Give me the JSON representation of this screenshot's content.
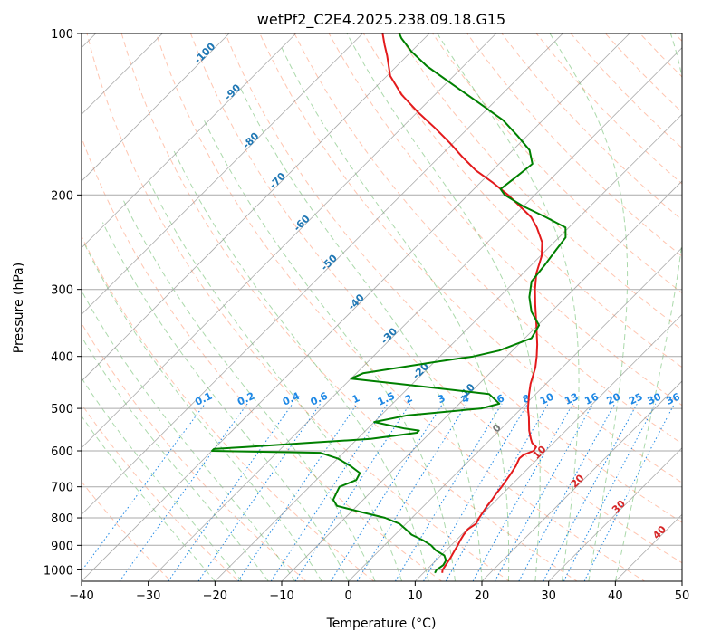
{
  "chart_data": {
    "type": "line",
    "subtype": "skew-T log-p diagram",
    "title": "wetPf2_C2E4.2025.238.09.18.G15",
    "xlabel": "Temperature (°C)",
    "ylabel": "Pressure (hPa)",
    "xlim": [
      -40,
      50
    ],
    "ylim": [
      1050,
      100
    ],
    "y_scale": "log",
    "grid": true,
    "x_ticks": [
      -40,
      -30,
      -20,
      -10,
      0,
      10,
      20,
      30,
      40,
      50
    ],
    "x_tick_labels": [
      "−40",
      "−30",
      "−20",
      "−10",
      "0",
      "10",
      "20",
      "30",
      "40",
      "50"
    ],
    "y_ticks": [
      100,
      200,
      300,
      400,
      500,
      600,
      700,
      800,
      900,
      1000
    ],
    "y_tick_labels": [
      "100",
      "200",
      "300",
      "400",
      "500",
      "600",
      "700",
      "800",
      "900",
      "1000"
    ],
    "colors": {
      "temperature": "#e31a1c",
      "dewpoint": "#008000",
      "dry_adiabat": "#ff7f50",
      "moist_adiabat": "#2ca02c",
      "mixing_ratio": "#1e88e5",
      "isotherm": "#888888",
      "isotherm_label": "#1f77b4",
      "isotherm_label_warm": "#d62728",
      "isobar": "#aaaaaa"
    },
    "isotherm_labels": [
      {
        "t": -100,
        "p": 110
      },
      {
        "t": -90,
        "p": 130
      },
      {
        "t": -80,
        "p": 160
      },
      {
        "t": -70,
        "p": 190
      },
      {
        "t": -60,
        "p": 228
      },
      {
        "t": -50,
        "p": 270
      },
      {
        "t": -40,
        "p": 320
      },
      {
        "t": -30,
        "p": 370
      },
      {
        "t": -20,
        "p": 430
      },
      {
        "t": -10,
        "p": 470
      },
      {
        "t": 0,
        "p": 550
      },
      {
        "t": 10,
        "p": 610
      },
      {
        "t": 20,
        "p": 690
      },
      {
        "t": 30,
        "p": 770
      },
      {
        "t": 40,
        "p": 860
      }
    ],
    "isotherm_label_texts": [
      "-100",
      "-90",
      "-80",
      "-70",
      "-60",
      "-50",
      "-40",
      "-30",
      "-20",
      "-10",
      "0",
      "10",
      "20",
      "30",
      "40"
    ],
    "mixing_ratio_labels": [
      "0.1",
      "0.2",
      "0.4",
      "0.6",
      "1",
      "1.5",
      "2",
      "3",
      "4",
      "6",
      "8",
      "10",
      "13",
      "16",
      "20",
      "25",
      "30",
      "36"
    ],
    "mixing_ratio_values": [
      0.1,
      0.2,
      0.4,
      0.6,
      1,
      1.5,
      2,
      3,
      4,
      6,
      8,
      10,
      13,
      16,
      20,
      25,
      30,
      36
    ],
    "series": [
      {
        "name": "Temperature",
        "points": [
          [
            1013,
            12.8
          ],
          [
            1000,
            12.4
          ],
          [
            950,
            11.8
          ],
          [
            920,
            11.3
          ],
          [
            900,
            11.0
          ],
          [
            880,
            10.6
          ],
          [
            860,
            10.3
          ],
          [
            840,
            10.1
          ],
          [
            820,
            10.5
          ],
          [
            800,
            10.1
          ],
          [
            780,
            9.8
          ],
          [
            760,
            9.5
          ],
          [
            740,
            9.3
          ],
          [
            720,
            9.0
          ],
          [
            700,
            8.8
          ],
          [
            680,
            8.5
          ],
          [
            660,
            8.2
          ],
          [
            640,
            7.8
          ],
          [
            620,
            7.2
          ],
          [
            610,
            7.3
          ],
          [
            600,
            8.2
          ],
          [
            590,
            8.0
          ],
          [
            580,
            6.8
          ],
          [
            570,
            6.0
          ],
          [
            550,
            4.5
          ],
          [
            520,
            2.5
          ],
          [
            500,
            1.0
          ],
          [
            470,
            -1.0
          ],
          [
            450,
            -2.3
          ],
          [
            420,
            -4.0
          ],
          [
            400,
            -5.5
          ],
          [
            380,
            -7.2
          ],
          [
            350,
            -10.2
          ],
          [
            320,
            -13.5
          ],
          [
            300,
            -15.8
          ],
          [
            280,
            -18.0
          ],
          [
            260,
            -19.8
          ],
          [
            245,
            -21.8
          ],
          [
            230,
            -24.8
          ],
          [
            220,
            -27.2
          ],
          [
            210,
            -30.5
          ],
          [
            200,
            -34.0
          ],
          [
            190,
            -38.0
          ],
          [
            180,
            -42.5
          ],
          [
            170,
            -46.5
          ],
          [
            160,
            -50.5
          ],
          [
            150,
            -55.0
          ],
          [
            140,
            -60.0
          ],
          [
            130,
            -65.0
          ],
          [
            120,
            -69.5
          ],
          [
            110,
            -73.0
          ],
          [
            105,
            -75.0
          ],
          [
            100,
            -77.0
          ]
        ]
      },
      {
        "name": "Dewpoint",
        "points": [
          [
            1013,
            11.7
          ],
          [
            1000,
            11.5
          ],
          [
            980,
            11.8
          ],
          [
            960,
            11.5
          ],
          [
            940,
            10.5
          ],
          [
            920,
            8.5
          ],
          [
            900,
            7.0
          ],
          [
            880,
            5.0
          ],
          [
            860,
            2.5
          ],
          [
            840,
            0.8
          ],
          [
            820,
            -1.0
          ],
          [
            800,
            -4.0
          ],
          [
            780,
            -8.5
          ],
          [
            760,
            -13.0
          ],
          [
            740,
            -14.5
          ],
          [
            720,
            -15.0
          ],
          [
            700,
            -15.5
          ],
          [
            680,
            -14.0
          ],
          [
            660,
            -14.5
          ],
          [
            640,
            -17.0
          ],
          [
            620,
            -20.0
          ],
          [
            605,
            -23.5
          ],
          [
            600,
            -40.0
          ],
          [
            595,
            -40.0
          ],
          [
            590,
            -35.5
          ],
          [
            580,
            -27.0
          ],
          [
            570,
            -18.0
          ],
          [
            555,
            -12.0
          ],
          [
            550,
            -12.0
          ],
          [
            545,
            -14.5
          ],
          [
            530,
            -20.0
          ],
          [
            515,
            -16.0
          ],
          [
            500,
            -6.0
          ],
          [
            490,
            -4.0
          ],
          [
            470,
            -7.0
          ],
          [
            450,
            -22.0
          ],
          [
            440,
            -30.0
          ],
          [
            430,
            -29.0
          ],
          [
            410,
            -20.0
          ],
          [
            400,
            -15.0
          ],
          [
            390,
            -12.0
          ],
          [
            370,
            -9.0
          ],
          [
            350,
            -9.8
          ],
          [
            330,
            -13.0
          ],
          [
            310,
            -15.5
          ],
          [
            290,
            -17.5
          ],
          [
            270,
            -18.0
          ],
          [
            255,
            -18.5
          ],
          [
            240,
            -19.0
          ],
          [
            230,
            -20.5
          ],
          [
            220,
            -25.0
          ],
          [
            210,
            -30.0
          ],
          [
            200,
            -34.5
          ],
          [
            195,
            -36.0
          ],
          [
            185,
            -35.5
          ],
          [
            175,
            -35.0
          ],
          [
            165,
            -37.5
          ],
          [
            155,
            -41.5
          ],
          [
            145,
            -46.0
          ],
          [
            135,
            -52.0
          ],
          [
            125,
            -58.5
          ],
          [
            115,
            -65.5
          ],
          [
            108,
            -70.0
          ],
          [
            102,
            -73.5
          ],
          [
            100,
            -74.5
          ]
        ]
      }
    ]
  }
}
